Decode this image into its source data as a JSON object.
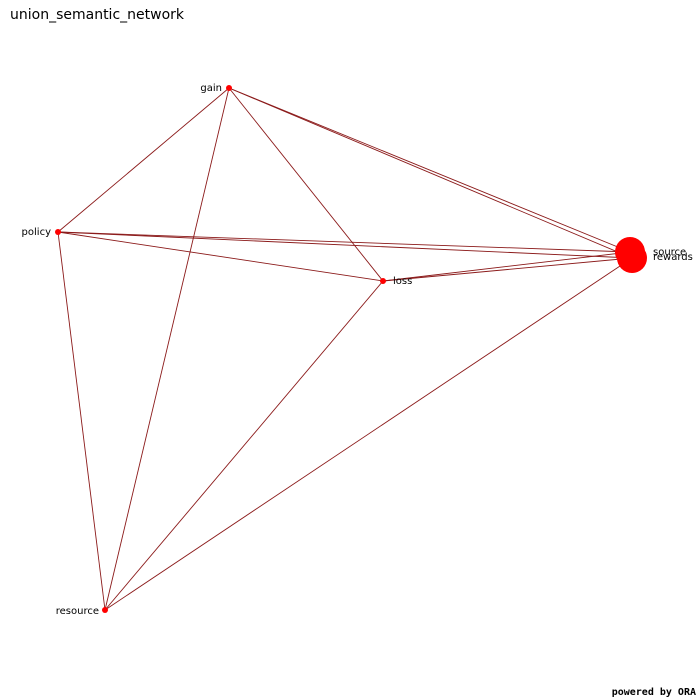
{
  "title": "union_semantic_network",
  "footer": "powered by ORA",
  "colors": {
    "edge": "#8b1a1a",
    "node": "#ff0000",
    "background": "#ffffff"
  },
  "network": {
    "nodes": [
      {
        "id": "gain",
        "label": "gain",
        "size": "small"
      },
      {
        "id": "policy",
        "label": "policy",
        "size": "small"
      },
      {
        "id": "loss",
        "label": "loss",
        "size": "small"
      },
      {
        "id": "resource",
        "label": "resource",
        "size": "small"
      },
      {
        "id": "source",
        "label": "source",
        "size": "large"
      },
      {
        "id": "rewards",
        "label": "rewards",
        "size": "large"
      }
    ],
    "edges": [
      [
        "gain",
        "policy"
      ],
      [
        "gain",
        "resource"
      ],
      [
        "gain",
        "loss"
      ],
      [
        "gain",
        "source"
      ],
      [
        "gain",
        "rewards"
      ],
      [
        "policy",
        "loss"
      ],
      [
        "policy",
        "resource"
      ],
      [
        "policy",
        "source"
      ],
      [
        "policy",
        "rewards"
      ],
      [
        "loss",
        "source"
      ],
      [
        "loss",
        "rewards"
      ],
      [
        "loss",
        "resource"
      ],
      [
        "resource",
        "rewards"
      ]
    ]
  }
}
